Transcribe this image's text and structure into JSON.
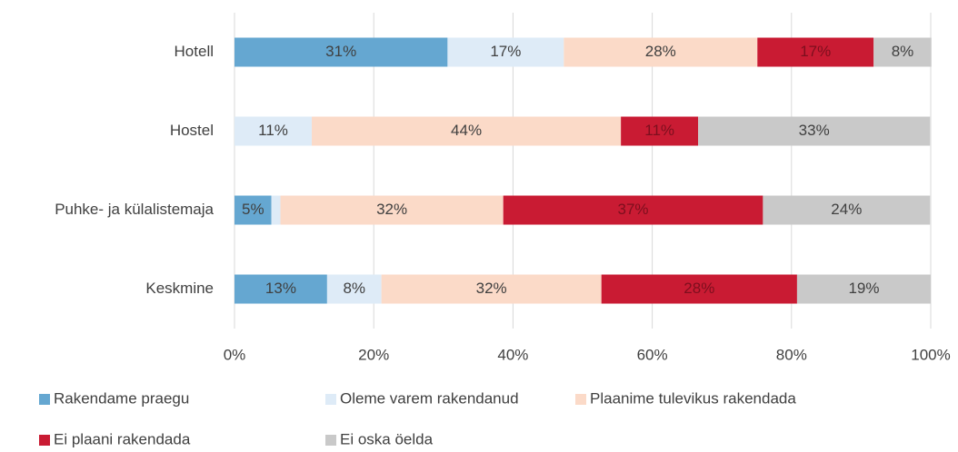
{
  "chart_data": {
    "type": "stacked-bar-horizontal",
    "categories": [
      "Hotell",
      "Hostel",
      "Puhke- ja külalistemaja",
      "Keskmine"
    ],
    "series": [
      {
        "name": "Rakendame praegu",
        "color": "#65a7d1",
        "values": [
          30.6,
          0,
          5.3,
          13.3
        ],
        "value_labels": [
          "31%",
          null,
          "5%",
          "13%"
        ]
      },
      {
        "name": "Oleme varem rakendanud",
        "color": "#deebf7",
        "values": [
          16.7,
          11.1,
          1.3,
          7.8
        ],
        "value_labels": [
          "17%",
          "11%",
          null,
          "8%"
        ]
      },
      {
        "name": "Plaanime tulevikus rakendada",
        "color": "#fbdac8",
        "values": [
          27.8,
          44.4,
          32,
          31.6
        ],
        "value_labels": [
          "28%",
          "44%",
          "32%",
          "32%"
        ]
      },
      {
        "name": "Ei plaani rakendada",
        "color": "#c91b33",
        "values": [
          16.7,
          11.1,
          37.3,
          28.1
        ],
        "value_labels": [
          "17%",
          "11%",
          "37%",
          "28%"
        ]
      },
      {
        "name": "Ei oska öelda",
        "color": "#c9c9c9",
        "values": [
          8.3,
          33.3,
          24,
          19.2
        ],
        "value_labels": [
          "8%",
          "33%",
          "24%",
          "19%"
        ]
      }
    ],
    "xlim": [
      0,
      100
    ],
    "xticks": [
      {
        "value": 0,
        "label": "0%"
      },
      {
        "value": 20,
        "label": "20%"
      },
      {
        "value": 40,
        "label": "40%"
      },
      {
        "value": 60,
        "label": "60%"
      },
      {
        "value": 80,
        "label": "80%"
      },
      {
        "value": 100,
        "label": "100%"
      }
    ],
    "grid": true,
    "legend": "bottom"
  }
}
